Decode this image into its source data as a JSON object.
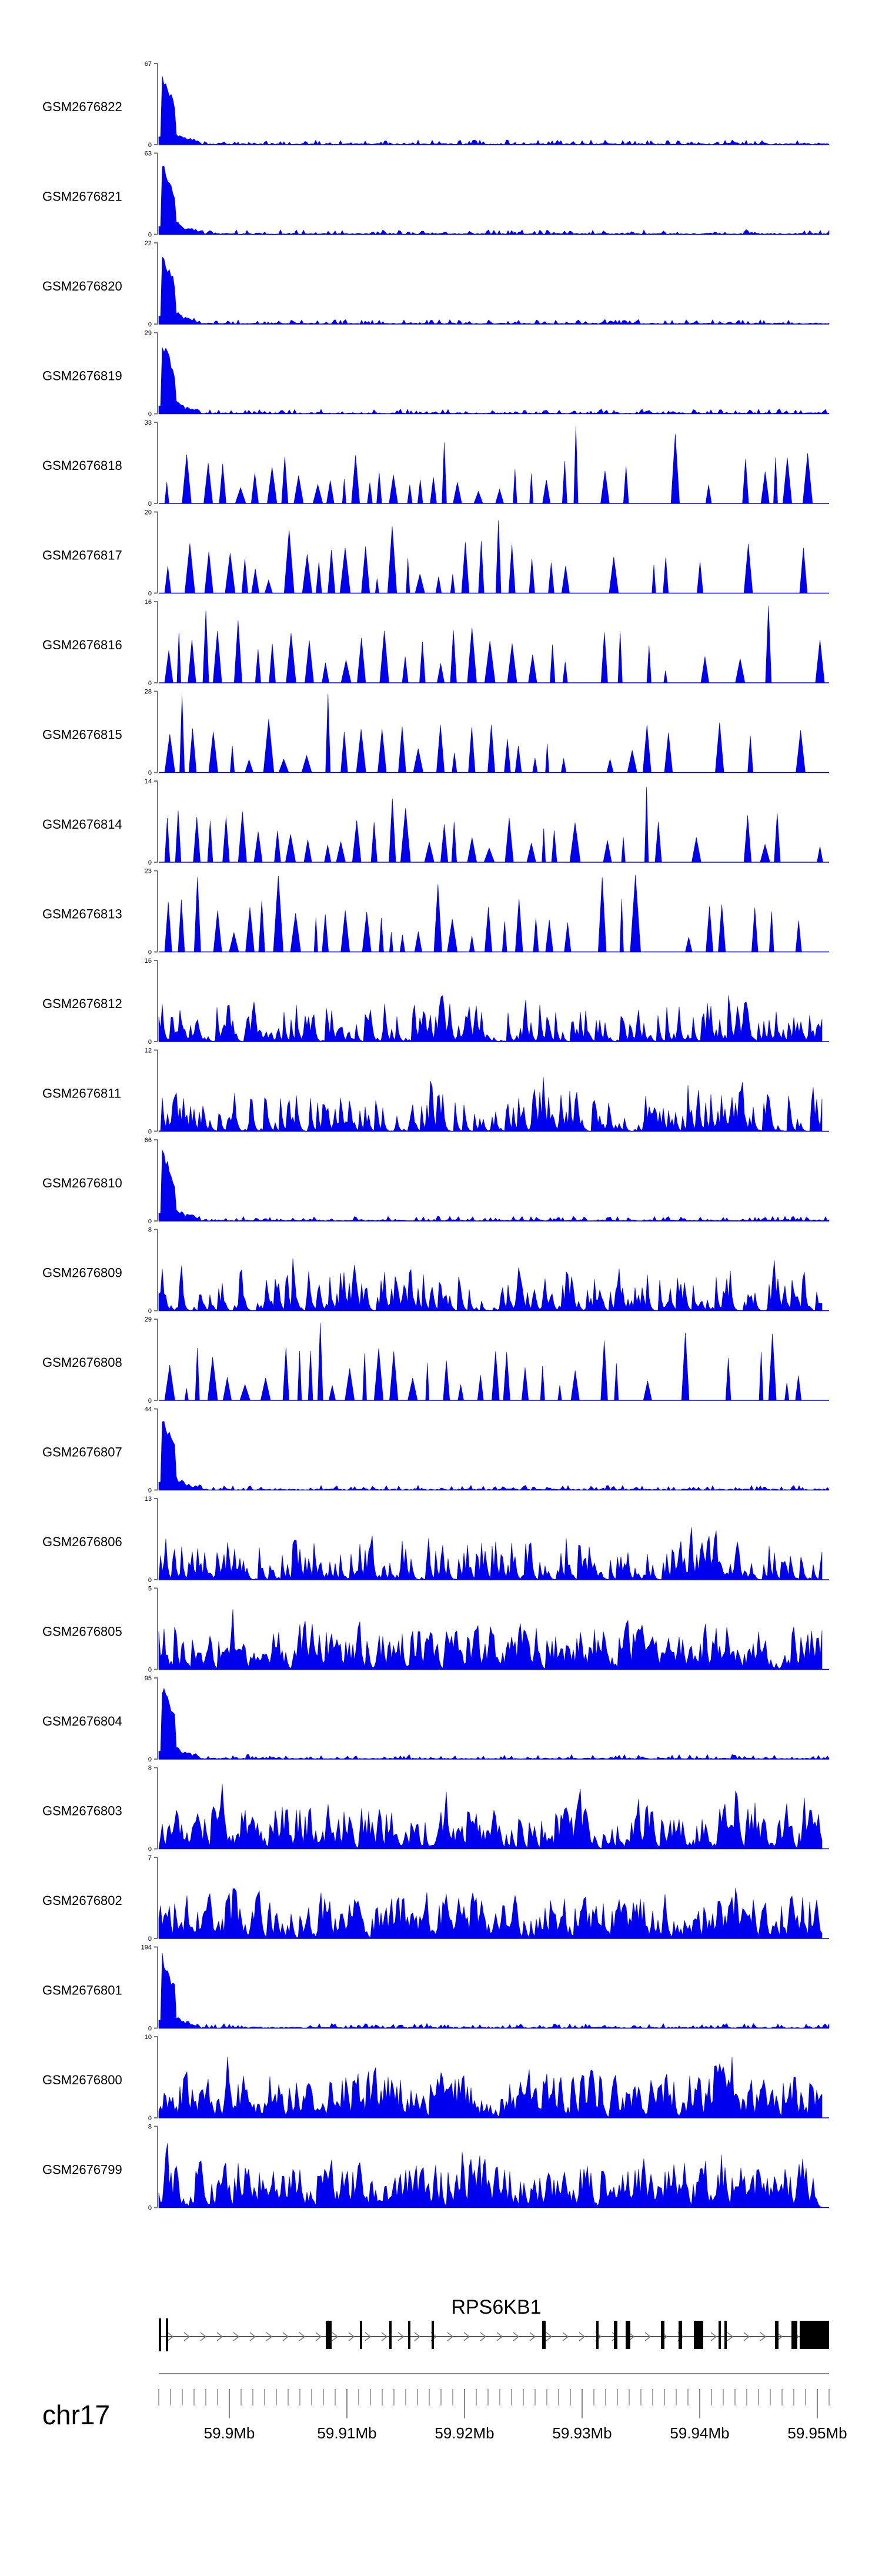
{
  "chart_data": {
    "type": "area",
    "region": {
      "chromosome": "chr17",
      "ticks": [
        "59.9Mb",
        "59.91Mb",
        "59.92Mb",
        "59.93Mb",
        "59.94Mb",
        "59.95Mb"
      ],
      "tick_values": [
        59.9,
        59.91,
        59.92,
        59.93,
        59.94,
        59.95
      ],
      "xlim": [
        59.894,
        59.951
      ]
    },
    "gene": {
      "name": "RPS6KB1",
      "strand": "+",
      "start": 59.894,
      "end": 59.951,
      "exons": [
        [
          59.894,
          59.8942
        ],
        [
          59.8946,
          59.8948
        ],
        [
          59.9082,
          59.9087
        ],
        [
          59.9111,
          59.9113
        ],
        [
          59.9136,
          59.9138
        ],
        [
          59.9152,
          59.9154
        ],
        [
          59.9172,
          59.9174
        ],
        [
          59.9266,
          59.9269
        ],
        [
          59.9312,
          59.9314
        ],
        [
          59.9327,
          59.933
        ],
        [
          59.9337,
          59.9341
        ],
        [
          59.9367,
          59.937
        ],
        [
          59.9382,
          59.9385
        ],
        [
          59.9395,
          59.9403
        ],
        [
          59.9416,
          59.9418
        ],
        [
          59.9421,
          59.9423
        ],
        [
          59.9464,
          59.9467
        ],
        [
          59.9478,
          59.9483
        ],
        [
          59.9485,
          59.951
        ]
      ]
    },
    "fill_color": "#0000ee",
    "tracks": [
      {
        "name": "GSM2676822",
        "ymax": 67,
        "profile": "early"
      },
      {
        "name": "GSM2676821",
        "ymax": 63,
        "profile": "early"
      },
      {
        "name": "GSM2676820",
        "ymax": 22,
        "profile": "early"
      },
      {
        "name": "GSM2676819",
        "ymax": 29,
        "profile": "early"
      },
      {
        "name": "GSM2676818",
        "ymax": 33,
        "profile": "sparse"
      },
      {
        "name": "GSM2676817",
        "ymax": 20,
        "profile": "sparse"
      },
      {
        "name": "GSM2676816",
        "ymax": 16,
        "profile": "sparse"
      },
      {
        "name": "GSM2676815",
        "ymax": 28,
        "profile": "sparse"
      },
      {
        "name": "GSM2676814",
        "ymax": 14,
        "profile": "sparse"
      },
      {
        "name": "GSM2676813",
        "ymax": 23,
        "profile": "sparse"
      },
      {
        "name": "GSM2676812",
        "ymax": 16,
        "profile": "dense"
      },
      {
        "name": "GSM2676811",
        "ymax": 12,
        "profile": "dense"
      },
      {
        "name": "GSM2676810",
        "ymax": 66,
        "profile": "early"
      },
      {
        "name": "GSM2676809",
        "ymax": 8,
        "profile": "dense"
      },
      {
        "name": "GSM2676808",
        "ymax": 29,
        "profile": "sparse"
      },
      {
        "name": "GSM2676807",
        "ymax": 44,
        "profile": "early"
      },
      {
        "name": "GSM2676806",
        "ymax": 13,
        "profile": "dense"
      },
      {
        "name": "GSM2676805",
        "ymax": 5,
        "profile": "full"
      },
      {
        "name": "GSM2676804",
        "ymax": 95,
        "profile": "early"
      },
      {
        "name": "GSM2676803",
        "ymax": 8,
        "profile": "full"
      },
      {
        "name": "GSM2676802",
        "ymax": 7,
        "profile": "full"
      },
      {
        "name": "GSM2676801",
        "ymax": 194,
        "profile": "early"
      },
      {
        "name": "GSM2676800",
        "ymax": 10,
        "profile": "full"
      },
      {
        "name": "GSM2676799",
        "ymax": 8,
        "profile": "full"
      }
    ]
  }
}
